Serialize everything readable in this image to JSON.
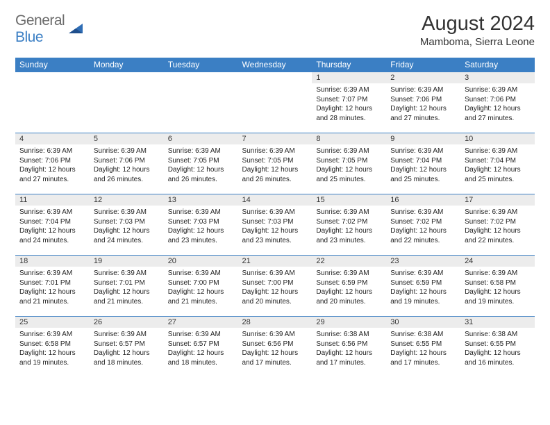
{
  "logo": {
    "line1": "General",
    "line2": "Blue",
    "shape_color": "#2f6db5"
  },
  "header": {
    "title": "August 2024",
    "location": "Mamboma, Sierra Leone"
  },
  "colors": {
    "header_bg": "#3b7fc4",
    "header_text": "#ffffff",
    "daynum_bg": "#ececec",
    "cell_border": "#3b7fc4",
    "logo_grey": "#6b6b6b",
    "logo_blue": "#3b7fc4",
    "body_text": "#222222"
  },
  "days_of_week": [
    "Sunday",
    "Monday",
    "Tuesday",
    "Wednesday",
    "Thursday",
    "Friday",
    "Saturday"
  ],
  "weeks": [
    [
      {
        "n": "",
        "sunrise": "",
        "sunset": "",
        "daylight": ""
      },
      {
        "n": "",
        "sunrise": "",
        "sunset": "",
        "daylight": ""
      },
      {
        "n": "",
        "sunrise": "",
        "sunset": "",
        "daylight": ""
      },
      {
        "n": "",
        "sunrise": "",
        "sunset": "",
        "daylight": ""
      },
      {
        "n": "1",
        "sunrise": "Sunrise: 6:39 AM",
        "sunset": "Sunset: 7:07 PM",
        "daylight": "Daylight: 12 hours and 28 minutes."
      },
      {
        "n": "2",
        "sunrise": "Sunrise: 6:39 AM",
        "sunset": "Sunset: 7:06 PM",
        "daylight": "Daylight: 12 hours and 27 minutes."
      },
      {
        "n": "3",
        "sunrise": "Sunrise: 6:39 AM",
        "sunset": "Sunset: 7:06 PM",
        "daylight": "Daylight: 12 hours and 27 minutes."
      }
    ],
    [
      {
        "n": "4",
        "sunrise": "Sunrise: 6:39 AM",
        "sunset": "Sunset: 7:06 PM",
        "daylight": "Daylight: 12 hours and 27 minutes."
      },
      {
        "n": "5",
        "sunrise": "Sunrise: 6:39 AM",
        "sunset": "Sunset: 7:06 PM",
        "daylight": "Daylight: 12 hours and 26 minutes."
      },
      {
        "n": "6",
        "sunrise": "Sunrise: 6:39 AM",
        "sunset": "Sunset: 7:05 PM",
        "daylight": "Daylight: 12 hours and 26 minutes."
      },
      {
        "n": "7",
        "sunrise": "Sunrise: 6:39 AM",
        "sunset": "Sunset: 7:05 PM",
        "daylight": "Daylight: 12 hours and 26 minutes."
      },
      {
        "n": "8",
        "sunrise": "Sunrise: 6:39 AM",
        "sunset": "Sunset: 7:05 PM",
        "daylight": "Daylight: 12 hours and 25 minutes."
      },
      {
        "n": "9",
        "sunrise": "Sunrise: 6:39 AM",
        "sunset": "Sunset: 7:04 PM",
        "daylight": "Daylight: 12 hours and 25 minutes."
      },
      {
        "n": "10",
        "sunrise": "Sunrise: 6:39 AM",
        "sunset": "Sunset: 7:04 PM",
        "daylight": "Daylight: 12 hours and 25 minutes."
      }
    ],
    [
      {
        "n": "11",
        "sunrise": "Sunrise: 6:39 AM",
        "sunset": "Sunset: 7:04 PM",
        "daylight": "Daylight: 12 hours and 24 minutes."
      },
      {
        "n": "12",
        "sunrise": "Sunrise: 6:39 AM",
        "sunset": "Sunset: 7:03 PM",
        "daylight": "Daylight: 12 hours and 24 minutes."
      },
      {
        "n": "13",
        "sunrise": "Sunrise: 6:39 AM",
        "sunset": "Sunset: 7:03 PM",
        "daylight": "Daylight: 12 hours and 23 minutes."
      },
      {
        "n": "14",
        "sunrise": "Sunrise: 6:39 AM",
        "sunset": "Sunset: 7:03 PM",
        "daylight": "Daylight: 12 hours and 23 minutes."
      },
      {
        "n": "15",
        "sunrise": "Sunrise: 6:39 AM",
        "sunset": "Sunset: 7:02 PM",
        "daylight": "Daylight: 12 hours and 23 minutes."
      },
      {
        "n": "16",
        "sunrise": "Sunrise: 6:39 AM",
        "sunset": "Sunset: 7:02 PM",
        "daylight": "Daylight: 12 hours and 22 minutes."
      },
      {
        "n": "17",
        "sunrise": "Sunrise: 6:39 AM",
        "sunset": "Sunset: 7:02 PM",
        "daylight": "Daylight: 12 hours and 22 minutes."
      }
    ],
    [
      {
        "n": "18",
        "sunrise": "Sunrise: 6:39 AM",
        "sunset": "Sunset: 7:01 PM",
        "daylight": "Daylight: 12 hours and 21 minutes."
      },
      {
        "n": "19",
        "sunrise": "Sunrise: 6:39 AM",
        "sunset": "Sunset: 7:01 PM",
        "daylight": "Daylight: 12 hours and 21 minutes."
      },
      {
        "n": "20",
        "sunrise": "Sunrise: 6:39 AM",
        "sunset": "Sunset: 7:00 PM",
        "daylight": "Daylight: 12 hours and 21 minutes."
      },
      {
        "n": "21",
        "sunrise": "Sunrise: 6:39 AM",
        "sunset": "Sunset: 7:00 PM",
        "daylight": "Daylight: 12 hours and 20 minutes."
      },
      {
        "n": "22",
        "sunrise": "Sunrise: 6:39 AM",
        "sunset": "Sunset: 6:59 PM",
        "daylight": "Daylight: 12 hours and 20 minutes."
      },
      {
        "n": "23",
        "sunrise": "Sunrise: 6:39 AM",
        "sunset": "Sunset: 6:59 PM",
        "daylight": "Daylight: 12 hours and 19 minutes."
      },
      {
        "n": "24",
        "sunrise": "Sunrise: 6:39 AM",
        "sunset": "Sunset: 6:58 PM",
        "daylight": "Daylight: 12 hours and 19 minutes."
      }
    ],
    [
      {
        "n": "25",
        "sunrise": "Sunrise: 6:39 AM",
        "sunset": "Sunset: 6:58 PM",
        "daylight": "Daylight: 12 hours and 19 minutes."
      },
      {
        "n": "26",
        "sunrise": "Sunrise: 6:39 AM",
        "sunset": "Sunset: 6:57 PM",
        "daylight": "Daylight: 12 hours and 18 minutes."
      },
      {
        "n": "27",
        "sunrise": "Sunrise: 6:39 AM",
        "sunset": "Sunset: 6:57 PM",
        "daylight": "Daylight: 12 hours and 18 minutes."
      },
      {
        "n": "28",
        "sunrise": "Sunrise: 6:39 AM",
        "sunset": "Sunset: 6:56 PM",
        "daylight": "Daylight: 12 hours and 17 minutes."
      },
      {
        "n": "29",
        "sunrise": "Sunrise: 6:38 AM",
        "sunset": "Sunset: 6:56 PM",
        "daylight": "Daylight: 12 hours and 17 minutes."
      },
      {
        "n": "30",
        "sunrise": "Sunrise: 6:38 AM",
        "sunset": "Sunset: 6:55 PM",
        "daylight": "Daylight: 12 hours and 17 minutes."
      },
      {
        "n": "31",
        "sunrise": "Sunrise: 6:38 AM",
        "sunset": "Sunset: 6:55 PM",
        "daylight": "Daylight: 12 hours and 16 minutes."
      }
    ]
  ]
}
